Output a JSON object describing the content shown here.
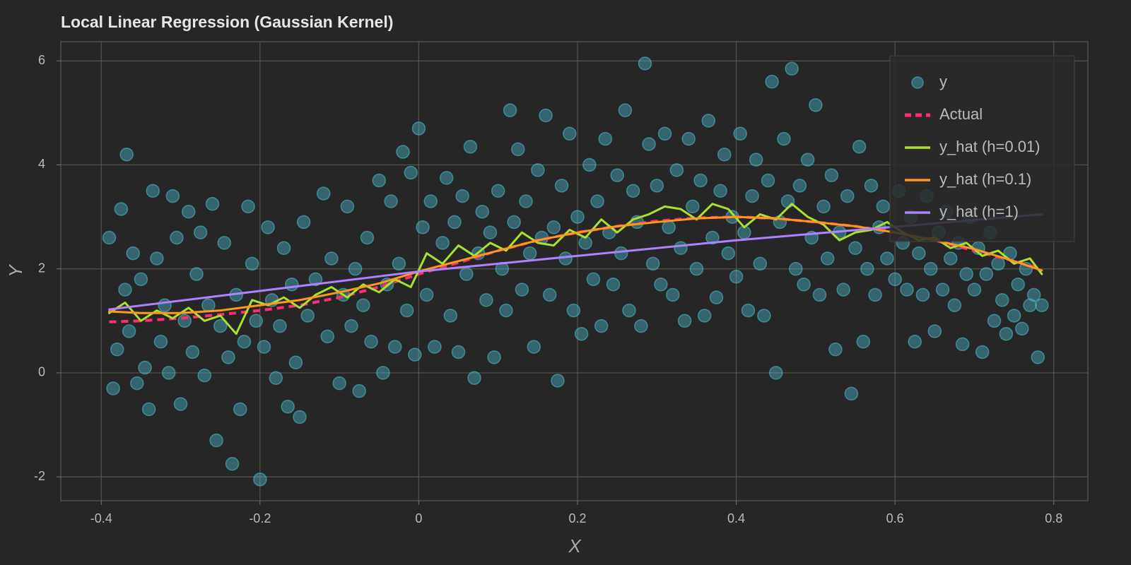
{
  "chart_data": {
    "type": "scatter",
    "title": "Local Linear Regression (Gaussian Kernel)",
    "xlabel": "X",
    "ylabel": "Y",
    "xlim": [
      -0.451,
      0.843
    ],
    "ylim": [
      -2.46,
      6.37
    ],
    "xticks": [
      -0.4,
      -0.2,
      0,
      0.2,
      0.4,
      0.6,
      0.8
    ],
    "yticks": [
      -2,
      0,
      2,
      4,
      6
    ],
    "grid": true,
    "legend": "upper right",
    "series": [
      {
        "name": "y",
        "style": "markers",
        "color": "#4fc3d8",
        "x": [
          -0.39,
          -0.385,
          -0.38,
          -0.375,
          -0.37,
          -0.368,
          -0.365,
          -0.36,
          -0.355,
          -0.35,
          -0.345,
          -0.34,
          -0.335,
          -0.33,
          -0.325,
          -0.32,
          -0.315,
          -0.31,
          -0.305,
          -0.3,
          -0.295,
          -0.29,
          -0.285,
          -0.28,
          -0.275,
          -0.27,
          -0.265,
          -0.26,
          -0.255,
          -0.25,
          -0.245,
          -0.24,
          -0.235,
          -0.23,
          -0.225,
          -0.22,
          -0.215,
          -0.21,
          -0.205,
          -0.2,
          -0.195,
          -0.19,
          -0.185,
          -0.18,
          -0.175,
          -0.17,
          -0.165,
          -0.16,
          -0.155,
          -0.15,
          -0.145,
          -0.14,
          -0.13,
          -0.12,
          -0.115,
          -0.11,
          -0.1,
          -0.095,
          -0.09,
          -0.085,
          -0.08,
          -0.075,
          -0.07,
          -0.065,
          -0.06,
          -0.05,
          -0.045,
          -0.04,
          -0.035,
          -0.03,
          -0.025,
          -0.02,
          -0.015,
          -0.01,
          -0.005,
          0,
          0.005,
          0.01,
          0.015,
          0.02,
          0.03,
          0.035,
          0.04,
          0.045,
          0.05,
          0.055,
          0.06,
          0.065,
          0.07,
          0.075,
          0.08,
          0.085,
          0.09,
          0.095,
          0.1,
          0.105,
          0.11,
          0.115,
          0.12,
          0.125,
          0.13,
          0.135,
          0.14,
          0.145,
          0.15,
          0.155,
          0.16,
          0.165,
          0.17,
          0.175,
          0.18,
          0.185,
          0.19,
          0.195,
          0.2,
          0.205,
          0.21,
          0.215,
          0.22,
          0.225,
          0.23,
          0.235,
          0.24,
          0.245,
          0.25,
          0.255,
          0.26,
          0.265,
          0.27,
          0.275,
          0.28,
          0.285,
          0.29,
          0.295,
          0.3,
          0.305,
          0.31,
          0.315,
          0.32,
          0.325,
          0.33,
          0.335,
          0.34,
          0.345,
          0.35,
          0.355,
          0.36,
          0.365,
          0.37,
          0.375,
          0.38,
          0.385,
          0.39,
          0.395,
          0.4,
          0.405,
          0.41,
          0.415,
          0.42,
          0.425,
          0.43,
          0.435,
          0.44,
          0.445,
          0.45,
          0.455,
          0.46,
          0.465,
          0.47,
          0.475,
          0.48,
          0.485,
          0.49,
          0.495,
          0.5,
          0.505,
          0.51,
          0.515,
          0.52,
          0.525,
          0.53,
          0.535,
          0.54,
          0.545,
          0.55,
          0.555,
          0.56,
          0.565,
          0.57,
          0.575,
          0.58,
          0.585,
          0.59,
          0.6,
          0.605,
          0.61,
          0.615,
          0.62,
          0.625,
          0.63,
          0.635,
          0.64,
          0.645,
          0.65,
          0.655,
          0.66,
          0.665,
          0.67,
          0.675,
          0.68,
          0.685,
          0.69,
          0.695,
          0.7,
          0.705,
          0.71,
          0.715,
          0.72,
          0.725,
          0.73,
          0.735,
          0.74,
          0.745,
          0.75,
          0.755,
          0.76,
          0.765,
          0.77,
          0.775,
          0.78,
          0.785
        ],
        "values": [
          2.6,
          -0.3,
          0.45,
          3.15,
          1.6,
          4.2,
          0.8,
          2.3,
          -0.2,
          1.8,
          0.1,
          -0.7,
          3.5,
          2.2,
          0.6,
          1.3,
          0.0,
          3.4,
          2.6,
          -0.6,
          1.0,
          3.1,
          0.4,
          1.9,
          2.7,
          -0.05,
          1.3,
          3.25,
          -1.3,
          0.9,
          2.5,
          0.3,
          -1.75,
          1.5,
          -0.7,
          0.6,
          3.2,
          2.1,
          1.0,
          -2.05,
          0.5,
          2.8,
          1.4,
          -0.1,
          0.9,
          2.4,
          -0.65,
          1.7,
          0.2,
          -0.85,
          2.9,
          1.1,
          1.8,
          3.45,
          0.7,
          2.2,
          -0.2,
          1.5,
          3.2,
          0.9,
          2.0,
          -0.35,
          1.3,
          2.6,
          0.6,
          3.7,
          0.0,
          1.7,
          3.3,
          0.5,
          2.1,
          4.25,
          1.2,
          3.85,
          0.35,
          4.7,
          2.8,
          1.5,
          3.3,
          0.5,
          2.5,
          3.75,
          1.1,
          2.9,
          0.4,
          3.4,
          1.9,
          4.35,
          -0.1,
          2.3,
          3.1,
          1.4,
          2.7,
          0.3,
          3.5,
          2.0,
          1.2,
          5.05,
          2.9,
          4.3,
          1.6,
          3.3,
          2.3,
          0.5,
          3.9,
          2.6,
          4.95,
          1.5,
          2.8,
          -0.15,
          3.6,
          2.2,
          4.6,
          1.2,
          3.0,
          0.75,
          2.5,
          4.0,
          1.8,
          3.3,
          0.9,
          4.5,
          2.7,
          1.7,
          3.8,
          2.3,
          5.05,
          1.2,
          3.5,
          2.9,
          0.9,
          5.95,
          4.4,
          2.1,
          3.6,
          1.7,
          4.6,
          2.8,
          1.5,
          3.9,
          2.4,
          1.0,
          4.5,
          3.2,
          2.0,
          3.7,
          1.1,
          4.85,
          2.6,
          1.45,
          3.5,
          4.2,
          2.3,
          3.0,
          1.85,
          4.6,
          2.7,
          1.2,
          3.4,
          4.1,
          2.1,
          1.1,
          3.7,
          5.6,
          0.0,
          2.9,
          4.5,
          3.3,
          5.85,
          2.0,
          3.6,
          1.7,
          4.1,
          2.6,
          5.15,
          1.5,
          3.2,
          2.2,
          3.8,
          0.45,
          2.7,
          1.6,
          3.4,
          -0.4,
          2.4,
          4.35,
          0.6,
          2.0,
          3.6,
          1.5,
          2.8,
          3.2,
          2.2,
          1.8,
          3.5,
          2.5,
          1.6,
          3.0,
          0.6,
          2.3,
          1.5,
          3.4,
          2.0,
          0.8,
          2.7,
          1.6,
          3.1,
          2.2,
          1.3,
          2.5,
          0.55,
          1.9,
          3.0,
          1.6,
          2.4,
          0.4,
          1.9,
          2.7,
          1.0,
          2.1,
          1.4,
          0.75,
          2.3,
          1.1,
          1.7,
          0.85,
          2.0,
          1.3,
          1.5,
          0.3,
          1.3
        ]
      },
      {
        "name": "Actual",
        "style": "dashed",
        "color": "#ff2d6f",
        "x": [
          -0.39,
          -0.35,
          -0.3,
          -0.25,
          -0.2,
          -0.15,
          -0.1,
          -0.05,
          0,
          0.05,
          0.1,
          0.15,
          0.2,
          0.25,
          0.3,
          0.35,
          0.4,
          0.45,
          0.5,
          0.55,
          0.6,
          0.65,
          0.7,
          0.75,
          0.785
        ],
        "values": [
          0.98,
          1.0,
          1.05,
          1.12,
          1.2,
          1.3,
          1.45,
          1.65,
          1.9,
          2.12,
          2.35,
          2.55,
          2.7,
          2.82,
          2.92,
          2.98,
          3.0,
          2.97,
          2.9,
          2.82,
          2.7,
          2.55,
          2.35,
          2.15,
          2.0
        ]
      },
      {
        "name": "y_hat (h=0.01)",
        "style": "solid",
        "color": "#a6e22e",
        "x": [
          -0.39,
          -0.37,
          -0.35,
          -0.33,
          -0.31,
          -0.29,
          -0.27,
          -0.25,
          -0.23,
          -0.21,
          -0.19,
          -0.17,
          -0.15,
          -0.13,
          -0.11,
          -0.09,
          -0.07,
          -0.05,
          -0.03,
          -0.01,
          0.01,
          0.03,
          0.05,
          0.07,
          0.09,
          0.11,
          0.13,
          0.15,
          0.17,
          0.19,
          0.21,
          0.23,
          0.25,
          0.27,
          0.29,
          0.31,
          0.33,
          0.35,
          0.37,
          0.39,
          0.41,
          0.43,
          0.45,
          0.47,
          0.49,
          0.51,
          0.53,
          0.55,
          0.57,
          0.59,
          0.61,
          0.63,
          0.65,
          0.67,
          0.69,
          0.71,
          0.73,
          0.75,
          0.77,
          0.785
        ],
        "values": [
          1.15,
          1.35,
          1.0,
          1.2,
          1.05,
          1.25,
          1.0,
          1.1,
          0.75,
          1.4,
          1.3,
          1.45,
          1.25,
          1.5,
          1.65,
          1.45,
          1.7,
          1.55,
          1.8,
          1.65,
          2.3,
          2.1,
          2.45,
          2.25,
          2.5,
          2.35,
          2.7,
          2.5,
          2.45,
          2.75,
          2.6,
          2.95,
          2.7,
          2.95,
          3.05,
          3.2,
          3.15,
          2.95,
          3.25,
          3.15,
          2.8,
          3.05,
          2.95,
          3.25,
          3.0,
          2.85,
          2.55,
          2.7,
          2.75,
          2.9,
          2.7,
          2.55,
          2.6,
          2.4,
          2.5,
          2.25,
          2.35,
          2.1,
          2.2,
          1.9
        ]
      },
      {
        "name": "y_hat (h=0.1)",
        "style": "solid",
        "color": "#fd971f",
        "x": [
          -0.39,
          -0.35,
          -0.3,
          -0.25,
          -0.2,
          -0.15,
          -0.1,
          -0.05,
          0,
          0.05,
          0.1,
          0.15,
          0.2,
          0.25,
          0.3,
          0.35,
          0.4,
          0.45,
          0.5,
          0.55,
          0.6,
          0.65,
          0.7,
          0.75,
          0.785
        ],
        "values": [
          1.18,
          1.15,
          1.15,
          1.2,
          1.3,
          1.4,
          1.55,
          1.72,
          1.95,
          2.15,
          2.35,
          2.55,
          2.7,
          2.82,
          2.9,
          2.97,
          3.0,
          2.97,
          2.9,
          2.82,
          2.7,
          2.55,
          2.38,
          2.15,
          1.97
        ]
      },
      {
        "name": "y_hat (h=1)",
        "style": "solid",
        "color": "#ae81ff",
        "x": [
          -0.39,
          0,
          0.4,
          0.785
        ],
        "values": [
          1.22,
          1.95,
          2.55,
          3.05
        ]
      }
    ]
  }
}
